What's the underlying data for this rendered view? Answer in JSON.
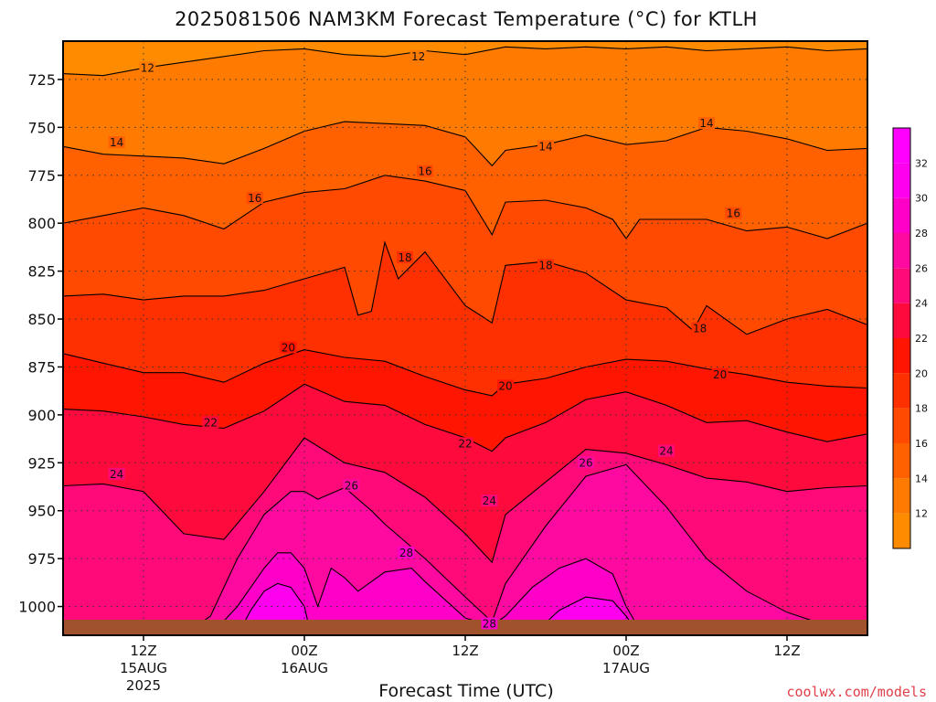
{
  "chart_data": {
    "type": "heatmap",
    "title": "2025081506 NAM3KM Forecast Temperature (°C) for KTLH",
    "xlabel": "Forecast Time (UTC)",
    "ylabel": "",
    "credit": "coolwx.com/models",
    "y_axis": {
      "unit": "hPa",
      "inverted": true,
      "range": [
        705,
        1015
      ],
      "ticks": [
        725,
        750,
        775,
        800,
        825,
        850,
        875,
        900,
        925,
        950,
        975,
        1000
      ],
      "grid": "dotted"
    },
    "x_axis": {
      "unit": "hours after 2025081506 UTC",
      "range": [
        0,
        60
      ],
      "ticks": [
        {
          "hour": 6,
          "label": "12Z",
          "date": "15AUG",
          "year": "2025"
        },
        {
          "hour": 18,
          "label": "00Z",
          "date": "16AUG",
          "year": ""
        },
        {
          "hour": 30,
          "label": "12Z",
          "date": "",
          "year": ""
        },
        {
          "hour": 42,
          "label": "00Z",
          "date": "17AUG",
          "year": ""
        },
        {
          "hour": 54,
          "label": "12Z",
          "date": "",
          "year": ""
        }
      ],
      "grid": "dotted"
    },
    "colorbar": {
      "levels": [
        12,
        14,
        16,
        18,
        20,
        22,
        24,
        26,
        28,
        30,
        32
      ],
      "colors": [
        "#ff8c00",
        "#ff7a00",
        "#ff6000",
        "#ff4a00",
        "#ff3000",
        "#ff1500",
        "#ff0a3c",
        "#ff0a78",
        "#ff0aa0",
        "#ff00c8",
        "#ff00ee",
        "#ff00ff"
      ]
    },
    "surface_color": "#a0522d",
    "series": [
      {
        "level": 12,
        "label_positions": [
          {
            "hour": 6.3,
            "p": 719
          },
          {
            "hour": 26.5,
            "p": 713
          }
        ],
        "hours": [
          0,
          3,
          6,
          9,
          12,
          15,
          18,
          21,
          24,
          27,
          30,
          33,
          36,
          39,
          42,
          45,
          48,
          51,
          54,
          57,
          60
        ],
        "p": [
          722,
          723,
          719,
          716,
          713,
          710,
          709,
          712,
          713,
          710,
          712,
          708,
          709,
          708,
          709,
          708,
          710,
          709,
          708,
          710,
          709
        ]
      },
      {
        "level": 14,
        "label_positions": [
          {
            "hour": 4,
            "p": 758
          },
          {
            "hour": 36,
            "p": 760
          },
          {
            "hour": 48,
            "p": 748
          }
        ],
        "hours": [
          0,
          3,
          6,
          9,
          12,
          15,
          18,
          21,
          24,
          27,
          30,
          32,
          33,
          36,
          39,
          42,
          45,
          48,
          51,
          54,
          57,
          60
        ],
        "p": [
          760,
          764,
          765,
          766,
          769,
          761,
          752,
          747,
          748,
          749,
          755,
          770,
          762,
          759,
          754,
          759,
          757,
          750,
          752,
          756,
          762,
          761
        ]
      },
      {
        "level": 16,
        "label_positions": [
          {
            "hour": 14.3,
            "p": 787
          },
          {
            "hour": 27,
            "p": 773
          },
          {
            "hour": 50,
            "p": 795
          }
        ],
        "hours": [
          0,
          3,
          6,
          9,
          12,
          15,
          18,
          21,
          24,
          27,
          30,
          32,
          33,
          36,
          39,
          41,
          42,
          43,
          45,
          48,
          51,
          54,
          57,
          60
        ],
        "p": [
          800,
          796,
          792,
          796,
          803,
          789,
          784,
          782,
          775,
          778,
          783,
          806,
          789,
          788,
          792,
          798,
          808,
          798,
          798,
          798,
          804,
          802,
          808,
          800
        ]
      },
      {
        "level": 18,
        "label_positions": [
          {
            "hour": 25.5,
            "p": 818
          },
          {
            "hour": 36,
            "p": 822
          },
          {
            "hour": 47.5,
            "p": 855
          }
        ],
        "hours": [
          0,
          3,
          6,
          9,
          12,
          15,
          18,
          21,
          22,
          23,
          24,
          25,
          27,
          30,
          32,
          33,
          36,
          39,
          42,
          45,
          47,
          48,
          51,
          54,
          57,
          60
        ],
        "p": [
          838,
          837,
          840,
          838,
          838,
          835,
          829,
          823,
          848,
          846,
          810,
          829,
          815,
          843,
          852,
          822,
          820,
          826,
          840,
          844,
          856,
          843,
          858,
          850,
          845,
          853
        ]
      },
      {
        "level": 20,
        "label_positions": [
          {
            "hour": 16.8,
            "p": 865
          },
          {
            "hour": 33,
            "p": 885
          },
          {
            "hour": 49,
            "p": 879
          }
        ],
        "hours": [
          0,
          3,
          6,
          9,
          12,
          15,
          18,
          21,
          24,
          27,
          30,
          32,
          33,
          36,
          39,
          42,
          45,
          48,
          51,
          54,
          57,
          60
        ],
        "p": [
          868,
          873,
          878,
          878,
          883,
          873,
          866,
          870,
          872,
          880,
          887,
          890,
          884,
          881,
          875,
          871,
          872,
          876,
          879,
          883,
          885,
          886
        ]
      },
      {
        "level": 22,
        "label_positions": [
          {
            "hour": 11,
            "p": 904
          },
          {
            "hour": 30,
            "p": 915
          }
        ],
        "hours": [
          0,
          3,
          6,
          9,
          12,
          15,
          18,
          21,
          24,
          27,
          30,
          32,
          33,
          36,
          39,
          42,
          45,
          48,
          51,
          54,
          57,
          60
        ],
        "p": [
          897,
          898,
          901,
          905,
          907,
          898,
          884,
          893,
          895,
          905,
          912,
          919,
          912,
          904,
          892,
          888,
          895,
          904,
          903,
          909,
          914,
          910
        ]
      },
      {
        "level": 24,
        "label_positions": [
          {
            "hour": 4,
            "p": 931
          },
          {
            "hour": 31.8,
            "p": 945
          },
          {
            "hour": 45,
            "p": 919
          }
        ],
        "hours": [
          0,
          3,
          6,
          9,
          12,
          15,
          18,
          21,
          24,
          27,
          30,
          32,
          33,
          36,
          39,
          42,
          45,
          48,
          51,
          54,
          57,
          60
        ],
        "p": [
          937,
          936,
          940,
          962,
          965,
          940,
          912,
          925,
          930,
          943,
          962,
          977,
          952,
          935,
          918,
          920,
          926,
          933,
          935,
          940,
          938,
          937
        ]
      },
      {
        "level": 26,
        "label_positions": [
          {
            "hour": 21.5,
            "p": 937
          },
          {
            "hour": 39,
            "p": 925
          }
        ],
        "hours": [
          0,
          3,
          6,
          9,
          11,
          13,
          15,
          17,
          18,
          19,
          21,
          23,
          24,
          27,
          30,
          32,
          33,
          36,
          39,
          42,
          45,
          48,
          51,
          54,
          57,
          60
        ],
        "p": [
          1015,
          1015,
          1015,
          1015,
          1005,
          975,
          952,
          940,
          940,
          944,
          938,
          950,
          957,
          975,
          995,
          1008,
          988,
          958,
          932,
          926,
          948,
          975,
          992,
          1003,
          1010,
          1012
        ]
      },
      {
        "level": 28,
        "label_positions": [
          {
            "hour": 25.6,
            "p": 972
          },
          {
            "hour": 31.8,
            "p": 1009
          }
        ],
        "hours": [
          11,
          13,
          15,
          16,
          17,
          18,
          19,
          20,
          21,
          22,
          24,
          26,
          27,
          30,
          32,
          33,
          35,
          37,
          39,
          41,
          42,
          43,
          44
        ],
        "p": [
          1015,
          1000,
          980,
          972,
          972,
          980,
          1000,
          980,
          985,
          992,
          982,
          980,
          987,
          1006,
          1010,
          1005,
          990,
          980,
          975,
          983,
          1000,
          1012,
          1015
        ]
      },
      {
        "level": 30,
        "label_positions": [],
        "hours": [
          13,
          14,
          15,
          16,
          17,
          18,
          18.5
        ],
        "p": [
          1015,
          1002,
          992,
          988,
          990,
          1000,
          1015
        ]
      },
      {
        "level": 30,
        "label_positions": [],
        "hours": [
          35,
          37,
          39,
          41,
          42,
          43
        ],
        "p": [
          1015,
          1002,
          995,
          997,
          1005,
          1015
        ]
      }
    ],
    "contour_labels": [
      "12",
      "14",
      "16",
      "18",
      "20",
      "22",
      "24",
      "26",
      "28"
    ]
  }
}
